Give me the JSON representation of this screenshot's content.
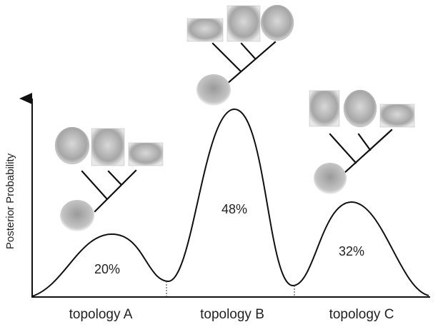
{
  "y_axis_label": "Posterior Probability",
  "topologies": [
    {
      "label": "topology A",
      "probability": "20%"
    },
    {
      "label": "topology B",
      "probability": "48%"
    },
    {
      "label": "topology C",
      "probability": "32%"
    }
  ]
}
